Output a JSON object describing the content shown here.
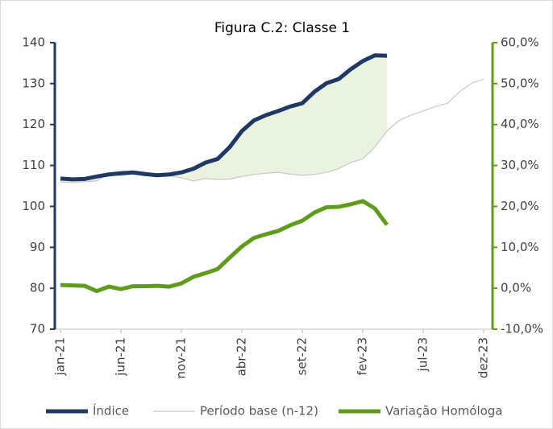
{
  "chart_data": {
    "type": "line",
    "title": "Figura C.2: Classe 1",
    "categories": [
      "jan-21",
      null,
      null,
      null,
      null,
      "jun-21",
      null,
      null,
      null,
      null,
      "nov-21",
      null,
      null,
      null,
      null,
      "abr-22",
      null,
      null,
      null,
      null,
      "set-22",
      null,
      null,
      null,
      null,
      "fev-23",
      null,
      null,
      null,
      null,
      "jul-23",
      null,
      null,
      null,
      null,
      "dez-23"
    ],
    "series": [
      {
        "name": "Índice",
        "color": "#203864",
        "values": [
          106.8,
          106.6,
          106.7,
          107.3,
          107.8,
          108.1,
          108.3,
          107.9,
          107.6,
          107.8,
          108.3,
          109.2,
          110.7,
          111.6,
          114.5,
          118.4,
          121,
          122.3,
          123.3,
          124.4,
          125.2,
          128,
          130.1,
          131.1,
          133.5,
          135.5,
          136.9,
          136.8,
          null,
          null,
          null,
          null,
          null,
          null,
          null,
          null
        ]
      },
      {
        "name": "Período base (n-12)",
        "color": "#c8c8c8",
        "values": [
          105.9,
          105.8,
          106,
          106.2,
          108,
          107.5,
          108,
          107.5,
          107.3,
          107.5,
          107,
          106.2,
          106.8,
          106.6,
          106.7,
          107.3,
          107.8,
          108.1,
          108.3,
          107.9,
          107.6,
          107.8,
          108.3,
          109.2,
          110.7,
          111.6,
          114.5,
          118.4,
          121,
          122.3,
          123.3,
          124.4,
          125.2,
          128,
          130.1,
          131.1
        ]
      },
      {
        "name": "Variação Homóloga",
        "color": "#5f9c1c",
        "axis": "y2",
        "values": [
          0.8,
          0.7,
          0.6,
          -0.7,
          0.4,
          -0.2,
          0.5,
          0.5,
          0.6,
          0.4,
          1.2,
          2.8,
          3.7,
          4.7,
          7.5,
          10.2,
          12.3,
          13.2,
          14.0,
          15.4,
          16.5,
          18.5,
          19.8,
          19.9,
          20.5,
          21.3,
          19.5,
          15.5,
          null,
          null,
          null,
          null,
          null,
          null,
          null,
          null
        ]
      }
    ],
    "ylim": [
      70,
      140
    ],
    "yticks": [
      70,
      80,
      90,
      100,
      110,
      120,
      130,
      140
    ],
    "y2lim": [
      -10,
      60
    ],
    "y2ticks": [
      {
        "value": -10,
        "label": "-10,0%"
      },
      {
        "value": 0,
        "label": "0,0%"
      },
      {
        "value": 10,
        "label": "10,0%"
      },
      {
        "value": 20,
        "label": "20,0%"
      },
      {
        "value": 30,
        "label": "30,0%"
      },
      {
        "value": 40,
        "label": "40,0%"
      },
      {
        "value": 50,
        "label": "50,0%"
      },
      {
        "value": 60,
        "label": "60,0%"
      }
    ],
    "legend": "bottom"
  }
}
